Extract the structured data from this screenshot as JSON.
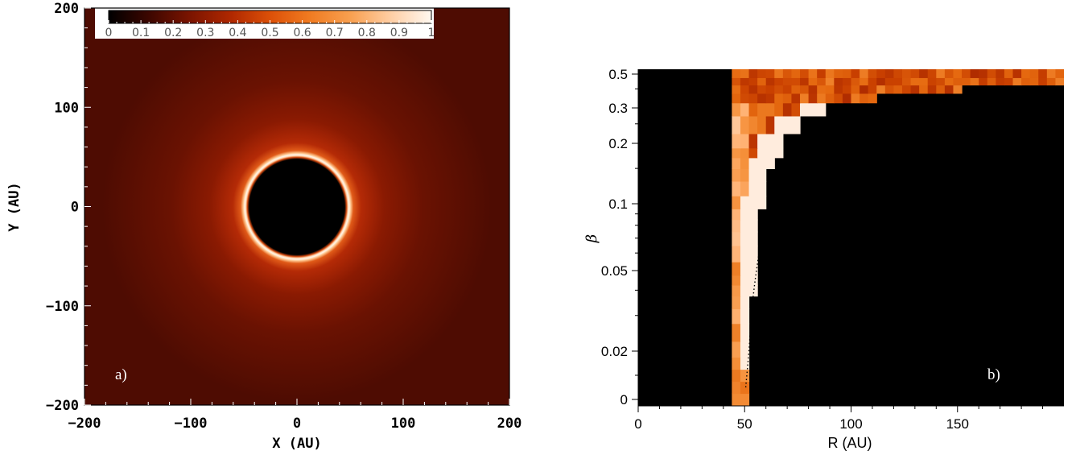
{
  "colormap": {
    "name": "heat",
    "stops": [
      "#000000",
      "#3a0600",
      "#6e1100",
      "#a02000",
      "#c94000",
      "#e66a10",
      "#f5903a",
      "#ffb070",
      "#ffd8b8",
      "#fff4ea"
    ]
  },
  "chart_data": [
    {
      "type": "heatmap",
      "panel_label": "a)",
      "title": "",
      "xlabel": "X (AU)",
      "ylabel": "Y (AU)",
      "xlim": [
        -200,
        200
      ],
      "ylim": [
        -200,
        200
      ],
      "x_ticks": [
        "−200",
        "−100",
        "0",
        "100",
        "200"
      ],
      "y_ticks": [
        "−200",
        "−100",
        "0",
        "100",
        "200"
      ],
      "colorbar": {
        "range": [
          0,
          1
        ],
        "tick_labels": [
          "0",
          "0.1",
          "0.2",
          "0.3",
          "0.4",
          "0.5",
          "0.6",
          "0.7",
          "0.8",
          "0.9",
          "1"
        ]
      },
      "features": {
        "inner_hole_radius_au": 50,
        "ring_peak_radius_au": 52,
        "peak_value": 1,
        "halo_value_at_200au": 0.12,
        "description_values": "bright ring at r~52 AU, empty inside, smooth decay outward"
      }
    },
    {
      "type": "heatmap",
      "panel_label": "b)",
      "title": "",
      "xlabel": "R (AU)",
      "ylabel": "β",
      "xlim": [
        0,
        200
      ],
      "x_ticks": [
        0,
        50,
        100,
        150
      ],
      "y_ticks": [
        "0",
        "0.02",
        "0.05",
        "0.1",
        "0.2",
        "0.3",
        "0.5"
      ],
      "y_tick_values": [
        0,
        0.02,
        0.05,
        0.1,
        0.2,
        0.3,
        0.5
      ],
      "beta_rows": [
        0,
        0.005,
        0.01,
        0.015,
        0.02,
        0.025,
        0.03,
        0.035,
        0.04,
        0.045,
        0.05,
        0.06,
        0.07,
        0.08,
        0.09,
        0.1,
        0.12,
        0.14,
        0.16,
        0.18,
        0.2,
        0.25,
        0.3,
        0.35,
        0.4,
        0.45,
        0.5
      ],
      "inner_edge_au": 44,
      "birth_ring_au": 50,
      "boundary_curve": "R = 50 (1 - beta) / (1 - 2 beta)",
      "dotted_curve": "R = 50 / (1 - 2 beta)"
    }
  ],
  "annotations": {
    "panel_a_label": "a)",
    "panel_b_label": "b)"
  }
}
